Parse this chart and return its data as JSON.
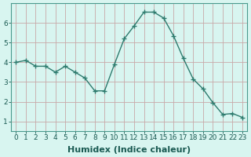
{
  "x": [
    0,
    1,
    2,
    3,
    4,
    5,
    6,
    7,
    8,
    9,
    10,
    11,
    12,
    13,
    14,
    15,
    16,
    17,
    18,
    19,
    20,
    21,
    22,
    23
  ],
  "y": [
    4.0,
    4.1,
    3.8,
    3.8,
    3.5,
    3.8,
    3.5,
    3.2,
    2.55,
    2.55,
    3.9,
    5.2,
    5.85,
    6.55,
    6.55,
    6.25,
    5.35,
    4.2,
    3.15,
    2.65,
    1.95,
    1.35,
    1.4,
    1.2
  ],
  "line_color": "#2e7b6e",
  "marker": "+",
  "marker_size": 4,
  "bg_color": "#d8f5f0",
  "grid_color_h": "#c8a8a8",
  "grid_color_v": "#c8a8a8",
  "xlabel": "Humidex (Indice chaleur)",
  "xlim": [
    -0.5,
    23.5
  ],
  "ylim": [
    0.5,
    7.0
  ],
  "yticks": [
    1,
    2,
    3,
    4,
    5,
    6
  ],
  "xticks": [
    0,
    1,
    2,
    3,
    4,
    5,
    6,
    7,
    8,
    9,
    10,
    11,
    12,
    13,
    14,
    15,
    16,
    17,
    18,
    19,
    20,
    21,
    22,
    23
  ],
  "xlabel_fontsize": 8,
  "tick_fontsize": 6.5,
  "line_width": 1.0,
  "marker_color": "#2e7b6e"
}
